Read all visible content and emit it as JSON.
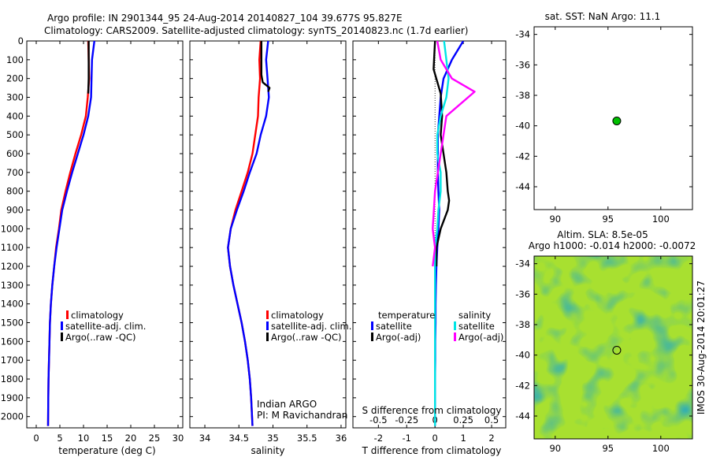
{
  "header": {
    "line1": "Argo profile: IN 2901344_95 24-Aug-2014 20140827_104 39.677S 95.827E",
    "line2": "Climatology: CARS2009. Satellite-adjusted climatology: synTS_20140823.nc (1.7d earlier)"
  },
  "colors": {
    "climatology": "#ff0000",
    "satellite": "#0000ff",
    "argo": "#000000",
    "satellite_salinity": "#00e5e5",
    "argo_salinity": "#ff00ff",
    "marker": "#00c000"
  },
  "chart_data": [
    {
      "id": "temperature",
      "type": "line",
      "xlabel": "temperature (deg C)",
      "xlim": [
        -2,
        31
      ],
      "xticks": [
        "0",
        "5",
        "10",
        "15",
        "20",
        "25",
        "30"
      ],
      "ylim": [
        0,
        2060
      ],
      "yreversed": true,
      "yticks": [
        "0",
        "100",
        "200",
        "300",
        "400",
        "500",
        "600",
        "700",
        "800",
        "900",
        "1000",
        "1100",
        "1200",
        "1300",
        "1400",
        "1500",
        "1600",
        "1700",
        "1800",
        "1900",
        "2000"
      ],
      "legend": [
        "climatology",
        "satellite-adj. clim.",
        "Argo(..raw -QC)"
      ],
      "series": [
        {
          "name": "climatology",
          "color": "#ff0000",
          "x": [
            11.0,
            11.1,
            11.2,
            10.9,
            10.5,
            9.5,
            8.3,
            7.2,
            6.2,
            5.3,
            4.8,
            4.2,
            3.8,
            3.4,
            3.1,
            2.9,
            2.8,
            2.7,
            2.6,
            2.55,
            2.5
          ],
          "y": [
            0,
            100,
            200,
            300,
            400,
            500,
            600,
            700,
            800,
            900,
            1000,
            1100,
            1200,
            1300,
            1400,
            1500,
            1600,
            1700,
            1800,
            1900,
            2050
          ]
        },
        {
          "name": "satellite-adj. clim.",
          "color": "#0000ff",
          "x": [
            12.3,
            11.8,
            11.7,
            11.6,
            11.0,
            10.0,
            8.8,
            7.6,
            6.5,
            5.5,
            4.9,
            4.3,
            3.8,
            3.4,
            3.1,
            2.9,
            2.8,
            2.7,
            2.6,
            2.55,
            2.5
          ],
          "y": [
            0,
            100,
            200,
            300,
            400,
            500,
            600,
            700,
            800,
            900,
            1000,
            1100,
            1200,
            1300,
            1400,
            1500,
            1600,
            1700,
            1800,
            1900,
            2050
          ]
        },
        {
          "name": "Argo(..raw -QC)",
          "color": "#000000",
          "x": [
            11.1,
            11.1,
            11.1,
            11.0
          ],
          "y": [
            0,
            100,
            200,
            280
          ]
        }
      ]
    },
    {
      "id": "salinity",
      "type": "line",
      "xlabel": "salinity",
      "xlim": [
        33.78,
        36.07
      ],
      "xticks": [
        "34",
        "34.5",
        "35",
        "35.5",
        "36"
      ],
      "ylim": [
        0,
        2060
      ],
      "yreversed": true,
      "legend": [
        "climatology",
        "satellite-adj. clim.",
        "Argo(..raw -QC)"
      ],
      "annotation": [
        "Indian ARGO",
        "PI: M Ravichandran"
      ],
      "series": [
        {
          "name": "climatology",
          "color": "#ff0000",
          "x": [
            34.82,
            34.8,
            34.81,
            34.79,
            34.78,
            34.74,
            34.7,
            34.63,
            34.54,
            34.45,
            34.38,
            34.34,
            34.37,
            34.42,
            34.48,
            34.54,
            34.59,
            34.63,
            34.66,
            34.68,
            34.7
          ],
          "y": [
            0,
            100,
            200,
            300,
            400,
            500,
            600,
            700,
            800,
            900,
            1000,
            1100,
            1200,
            1300,
            1400,
            1500,
            1600,
            1700,
            1800,
            1900,
            2050
          ]
        },
        {
          "name": "satellite-adj. clim.",
          "color": "#0000ff",
          "x": [
            34.93,
            34.9,
            34.92,
            34.94,
            34.9,
            34.82,
            34.76,
            34.66,
            34.57,
            34.47,
            34.38,
            34.34,
            34.37,
            34.42,
            34.48,
            34.54,
            34.59,
            34.63,
            34.66,
            34.68,
            34.7
          ],
          "y": [
            0,
            100,
            200,
            300,
            400,
            500,
            600,
            700,
            800,
            900,
            1000,
            1100,
            1200,
            1300,
            1400,
            1500,
            1600,
            1700,
            1800,
            1900,
            2050
          ]
        },
        {
          "name": "Argo(..raw -QC)",
          "color": "#000000",
          "x": [
            34.83,
            34.83,
            34.83,
            34.85,
            34.95,
            34.93
          ],
          "y": [
            0,
            100,
            180,
            220,
            250,
            270
          ]
        }
      ]
    },
    {
      "id": "difference",
      "type": "line",
      "xlabel": "T difference from climatology",
      "xlabel_top": "S difference from climatology",
      "xlim": [
        -2.9,
        2.5
      ],
      "xticks": [
        "-2",
        "-1",
        "0",
        "1",
        "2"
      ],
      "xticks_top": [
        "-0.5",
        "-0.25",
        "0",
        "0.25",
        "0.5"
      ],
      "ylim": [
        0,
        2060
      ],
      "yreversed": true,
      "legend_headers": [
        "temperature",
        "salinity"
      ],
      "legend": [
        "satellite",
        "Argo(-adj)",
        "satellite",
        "Argo(-adj)"
      ],
      "series": [
        {
          "name": "temperature satellite",
          "color": "#0000ff",
          "x": [
            1.0,
            0.6,
            0.3,
            0.2,
            0.15,
            0.1,
            0.1,
            0.1,
            0.12,
            0.15,
            0.12,
            0.08,
            0.05,
            0.03,
            0.02,
            0.02,
            0.01,
            0.01,
            0.0,
            0.0,
            0.0
          ],
          "y": [
            0,
            100,
            200,
            300,
            400,
            500,
            600,
            700,
            800,
            900,
            1000,
            1100,
            1200,
            1300,
            1400,
            1500,
            1600,
            1700,
            1800,
            1900,
            2050
          ]
        },
        {
          "name": "temperature Argo(-adj)",
          "color": "#000000",
          "x": [
            0.0,
            -0.05,
            0.2,
            0.25,
            0.2,
            0.3,
            0.4,
            0.45,
            0.5,
            0.45,
            0.2,
            0.05,
            0.05
          ],
          "y": [
            0,
            150,
            280,
            400,
            500,
            600,
            700,
            800,
            850,
            900,
            1000,
            1100,
            1200
          ]
        },
        {
          "name": "salinity satellite",
          "color": "#00e5e5",
          "x": [
            0.08,
            0.1,
            0.12,
            0.1,
            0.05,
            0.02,
            0.02,
            0.05,
            0.05,
            0.03,
            0.02,
            0.0,
            0.0,
            0.0,
            0.0,
            0.0,
            0.0,
            0.0,
            0.0,
            0.0,
            0.0
          ],
          "y": [
            0,
            100,
            200,
            300,
            400,
            500,
            600,
            700,
            800,
            900,
            1000,
            1100,
            1200,
            1300,
            1400,
            1500,
            1600,
            1700,
            1800,
            1900,
            2050
          ]
        },
        {
          "name": "salinity Argo(-adj)",
          "color": "#ff00ff",
          "x": [
            0.02,
            0.05,
            0.15,
            0.35,
            0.1,
            0.05,
            0.0,
            -0.02,
            0.0,
            -0.02
          ],
          "y": [
            0,
            100,
            200,
            270,
            400,
            600,
            800,
            1000,
            1100,
            1200
          ]
        }
      ]
    },
    {
      "id": "sst-map",
      "type": "scatter",
      "title": "sat. SST: NaN Argo: 11.1",
      "xlim": [
        88,
        103
      ],
      "ylim": [
        -45.5,
        -33.5
      ],
      "xticks": [
        "90",
        "95",
        "100"
      ],
      "yticks": [
        "-34",
        "-36",
        "-38",
        "-40",
        "-42",
        "-44"
      ],
      "points": [
        {
          "x": 95.83,
          "y": -39.68
        }
      ]
    },
    {
      "id": "sla-map",
      "type": "heatmap",
      "title_line1": "Altim. SLA: 8.5e-05",
      "title_line2": "Argo h1000: -0.014 h2000: -0.0072",
      "xlim": [
        88,
        103
      ],
      "ylim": [
        -45.5,
        -33.5
      ],
      "xticks": [
        "90",
        "95",
        "100"
      ],
      "yticks": [
        "-34",
        "-36",
        "-38",
        "-40",
        "-42",
        "-44"
      ],
      "points": [
        {
          "x": 95.83,
          "y": -39.68
        }
      ],
      "side_label": "IMOS 30-Aug-2014 20:01:27"
    }
  ]
}
